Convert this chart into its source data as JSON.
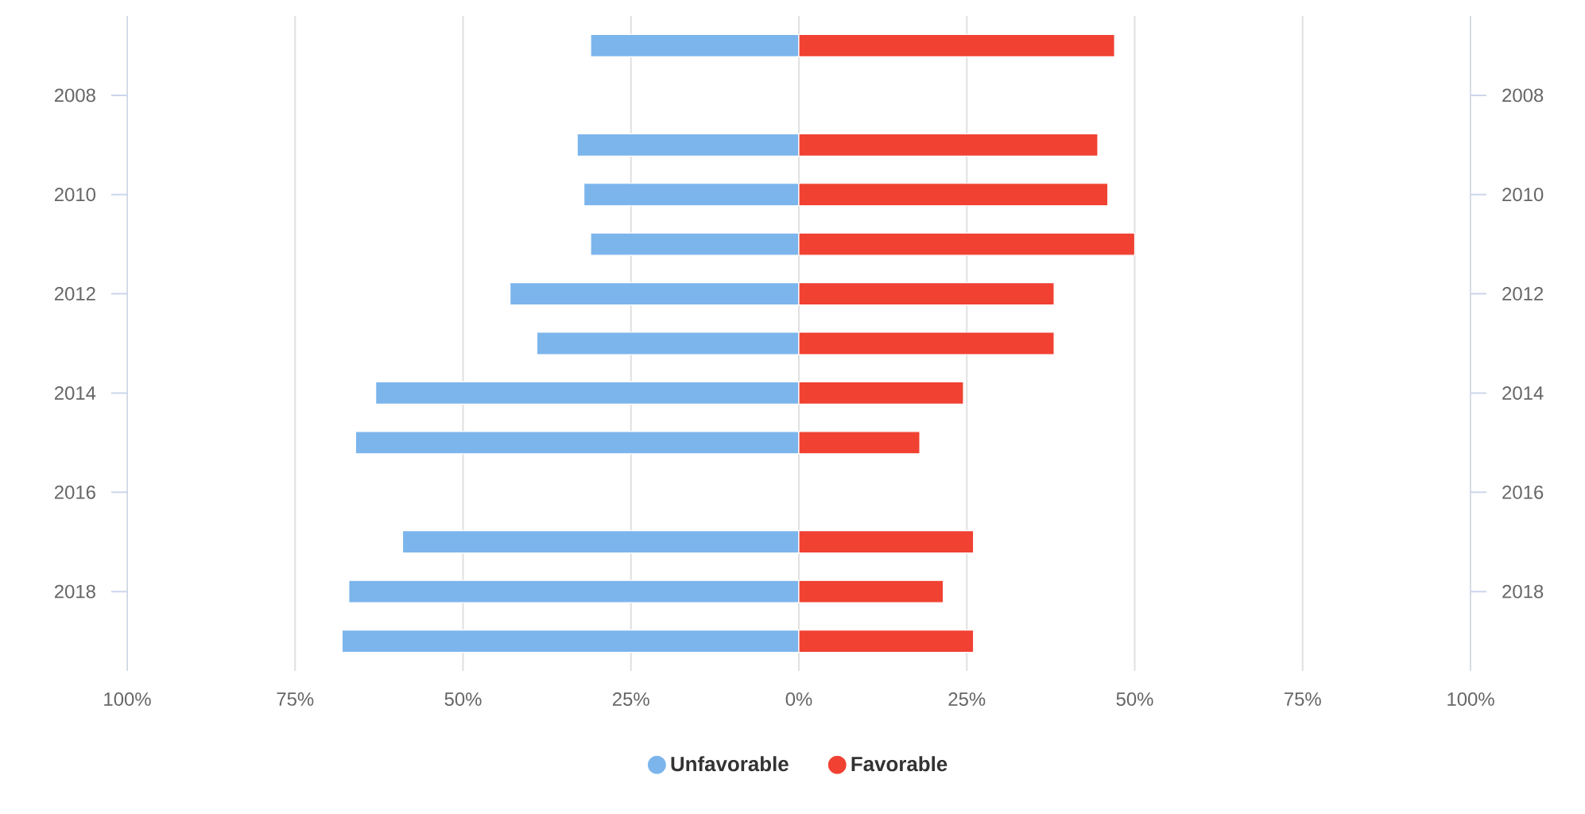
{
  "chart_data": {
    "type": "bar",
    "orientation": "horizontal",
    "categories": [
      null,
      "2008",
      null,
      "2010",
      null,
      "2012",
      null,
      "2014",
      null,
      "2016",
      null,
      "2018",
      null
    ],
    "series": [
      {
        "name": "Unfavorable",
        "color": "#7cb5ec",
        "values": [
          -31,
          null,
          -33,
          -32,
          -31,
          -43,
          -39,
          -63,
          -66,
          null,
          -59,
          -67,
          -68
        ]
      },
      {
        "name": "Favorable",
        "color": "#f04132",
        "values": [
          47,
          null,
          44.5,
          46,
          50,
          38,
          38,
          24.5,
          18,
          null,
          26,
          21.5,
          26
        ]
      }
    ],
    "xlim": [
      -100,
      100
    ],
    "xticks": [
      {
        "value": -100,
        "label": "100%"
      },
      {
        "value": -75,
        "label": "75%"
      },
      {
        "value": -50,
        "label": "50%"
      },
      {
        "value": -25,
        "label": "25%"
      },
      {
        "value": 0,
        "label": "0%"
      },
      {
        "value": 25,
        "label": "25%"
      },
      {
        "value": 50,
        "label": "50%"
      },
      {
        "value": 75,
        "label": "75%"
      },
      {
        "value": 100,
        "label": "100%"
      }
    ],
    "grid": "x",
    "legend": "bottom",
    "stacked": true
  }
}
